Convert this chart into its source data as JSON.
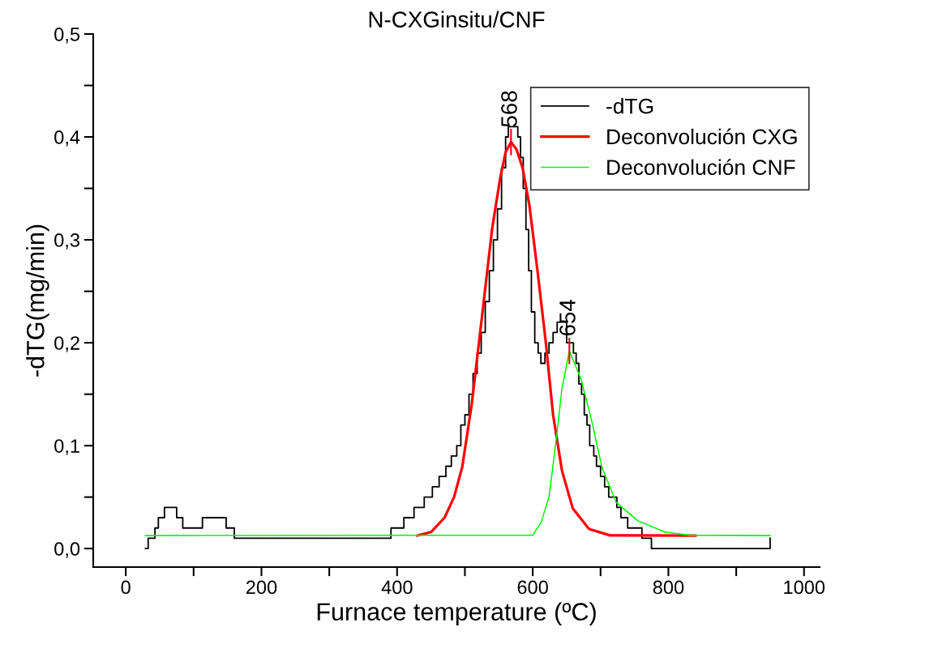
{
  "chart_data": {
    "type": "line",
    "title": "N-CXGinsitu/CNF",
    "xlabel": "Furnace temperature (ºC)",
    "ylabel": "-dTG(mg/min)",
    "xlim": [
      -48,
      1023
    ],
    "ylim": [
      -0.018,
      0.5
    ],
    "xticks": [
      0,
      {
        "value": 100,
        "label": null
      },
      200,
      {
        "value": 300,
        "label": null
      },
      400,
      {
        "value": 500,
        "label": null
      },
      600,
      {
        "value": 700,
        "label": null
      },
      800,
      {
        "value": 900,
        "label": null
      },
      1000
    ],
    "yticks": [
      {
        "value": 0,
        "label": "0,0"
      },
      {
        "value": 0.05,
        "label": null
      },
      {
        "value": 0.1,
        "label": "0,1"
      },
      {
        "value": 0.15,
        "label": null
      },
      {
        "value": 0.2,
        "label": "0,2"
      },
      {
        "value": 0.25,
        "label": null
      },
      {
        "value": 0.3,
        "label": "0,3"
      },
      {
        "value": 0.35,
        "label": null
      },
      {
        "value": 0.4,
        "label": "0,4"
      },
      {
        "value": 0.45,
        "label": null
      },
      {
        "value": 0.5,
        "label": "0,5"
      }
    ],
    "grid": false,
    "legend": "top right",
    "series": [
      {
        "name": "-dTG",
        "type": "step",
        "color": "#000000",
        "x": [
          29,
          33,
          43,
          48,
          57,
          75,
          84,
          113,
          148,
          160,
          391,
          410,
          425,
          440,
          452,
          462,
          472,
          480,
          488,
          494,
          500,
          506,
          512,
          518,
          524,
          530,
          536,
          542,
          548,
          554,
          560,
          564,
          578,
          582,
          586,
          590,
          594,
          598,
          603,
          608,
          612,
          618,
          624,
          630,
          636,
          650,
          660,
          664,
          668,
          672,
          676,
          680,
          684,
          690,
          694,
          700,
          706,
          712,
          718,
          724,
          730,
          740,
          752,
          761,
          775,
          950
        ],
        "values": [
          0.0,
          0.01,
          0.02,
          0.03,
          0.04,
          0.03,
          0.02,
          0.03,
          0.02,
          0.01,
          0.02,
          0.03,
          0.04,
          0.05,
          0.06,
          0.07,
          0.08,
          0.09,
          0.1,
          0.12,
          0.13,
          0.15,
          0.17,
          0.19,
          0.21,
          0.24,
          0.27,
          0.3,
          0.33,
          0.37,
          0.4,
          0.41,
          0.4,
          0.38,
          0.35,
          0.31,
          0.27,
          0.23,
          0.2,
          0.19,
          0.18,
          0.19,
          0.2,
          0.21,
          0.22,
          0.2,
          0.19,
          0.18,
          0.16,
          0.15,
          0.13,
          0.12,
          0.1,
          0.09,
          0.08,
          0.07,
          0.06,
          0.05,
          0.05,
          0.04,
          0.03,
          0.02,
          0.02,
          0.01,
          0.0,
          0.01
        ]
      },
      {
        "name": "Deconvolución CXG",
        "color": "#ff0000",
        "x": [
          430,
          450,
          470,
          484,
          496,
          510,
          523,
          540,
          552,
          560,
          568,
          576,
          585,
          595,
          607,
          619,
          630,
          643,
          659,
          683,
          714,
          840
        ],
        "values": [
          0.0126,
          0.016,
          0.03,
          0.05,
          0.079,
          0.14,
          0.213,
          0.31,
          0.36,
          0.385,
          0.395,
          0.388,
          0.37,
          0.334,
          0.27,
          0.202,
          0.13,
          0.076,
          0.039,
          0.019,
          0.0128,
          0.0126
        ]
      },
      {
        "name": "Deconvolución CNF",
        "color": "#00ff00",
        "x": [
          29,
          600,
          612,
          624,
          635,
          643,
          654,
          671,
          687,
          702,
          723,
          755,
          795,
          831,
          950
        ],
        "values": [
          0.0126,
          0.013,
          0.025,
          0.05,
          0.108,
          0.155,
          0.192,
          0.165,
          0.124,
          0.079,
          0.045,
          0.027,
          0.016,
          0.013,
          0.0126
        ]
      }
    ],
    "annotations": [
      {
        "text": "568",
        "x": 568,
        "y": 0.395
      },
      {
        "text": "654",
        "x": 654,
        "y": 0.192
      }
    ]
  }
}
